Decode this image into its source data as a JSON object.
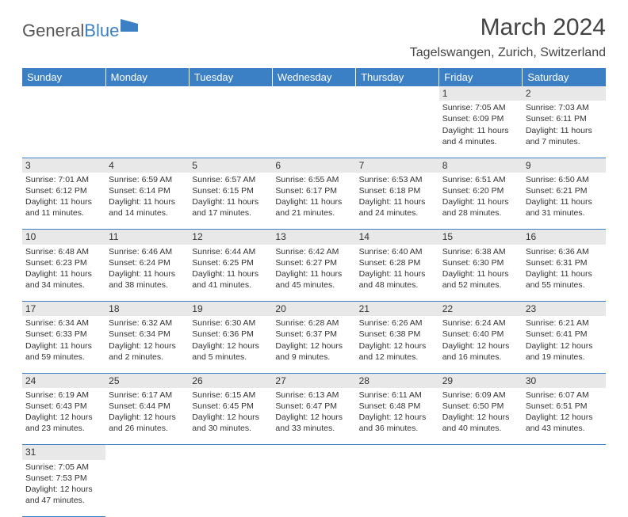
{
  "logo": {
    "text1": "General",
    "text2": "Blue"
  },
  "title": "March 2024",
  "location": "Tagelswangen, Zurich, Switzerland",
  "colors": {
    "header_bg": "#3b7fc4",
    "header_text": "#ffffff",
    "daynum_bg": "#e8e8e8",
    "border": "#3b7fc4",
    "logo_gray": "#555555",
    "logo_blue": "#3b7fc4"
  },
  "days_header": [
    "Sunday",
    "Monday",
    "Tuesday",
    "Wednesday",
    "Thursday",
    "Friday",
    "Saturday"
  ],
  "weeks": [
    {
      "nums": [
        "",
        "",
        "",
        "",
        "",
        "1",
        "2"
      ],
      "cells": [
        null,
        null,
        null,
        null,
        null,
        {
          "sunrise": "Sunrise: 7:05 AM",
          "sunset": "Sunset: 6:09 PM",
          "daylight": "Daylight: 11 hours and 4 minutes."
        },
        {
          "sunrise": "Sunrise: 7:03 AM",
          "sunset": "Sunset: 6:11 PM",
          "daylight": "Daylight: 11 hours and 7 minutes."
        }
      ]
    },
    {
      "nums": [
        "3",
        "4",
        "5",
        "6",
        "7",
        "8",
        "9"
      ],
      "cells": [
        {
          "sunrise": "Sunrise: 7:01 AM",
          "sunset": "Sunset: 6:12 PM",
          "daylight": "Daylight: 11 hours and 11 minutes."
        },
        {
          "sunrise": "Sunrise: 6:59 AM",
          "sunset": "Sunset: 6:14 PM",
          "daylight": "Daylight: 11 hours and 14 minutes."
        },
        {
          "sunrise": "Sunrise: 6:57 AM",
          "sunset": "Sunset: 6:15 PM",
          "daylight": "Daylight: 11 hours and 17 minutes."
        },
        {
          "sunrise": "Sunrise: 6:55 AM",
          "sunset": "Sunset: 6:17 PM",
          "daylight": "Daylight: 11 hours and 21 minutes."
        },
        {
          "sunrise": "Sunrise: 6:53 AM",
          "sunset": "Sunset: 6:18 PM",
          "daylight": "Daylight: 11 hours and 24 minutes."
        },
        {
          "sunrise": "Sunrise: 6:51 AM",
          "sunset": "Sunset: 6:20 PM",
          "daylight": "Daylight: 11 hours and 28 minutes."
        },
        {
          "sunrise": "Sunrise: 6:50 AM",
          "sunset": "Sunset: 6:21 PM",
          "daylight": "Daylight: 11 hours and 31 minutes."
        }
      ]
    },
    {
      "nums": [
        "10",
        "11",
        "12",
        "13",
        "14",
        "15",
        "16"
      ],
      "cells": [
        {
          "sunrise": "Sunrise: 6:48 AM",
          "sunset": "Sunset: 6:23 PM",
          "daylight": "Daylight: 11 hours and 34 minutes."
        },
        {
          "sunrise": "Sunrise: 6:46 AM",
          "sunset": "Sunset: 6:24 PM",
          "daylight": "Daylight: 11 hours and 38 minutes."
        },
        {
          "sunrise": "Sunrise: 6:44 AM",
          "sunset": "Sunset: 6:25 PM",
          "daylight": "Daylight: 11 hours and 41 minutes."
        },
        {
          "sunrise": "Sunrise: 6:42 AM",
          "sunset": "Sunset: 6:27 PM",
          "daylight": "Daylight: 11 hours and 45 minutes."
        },
        {
          "sunrise": "Sunrise: 6:40 AM",
          "sunset": "Sunset: 6:28 PM",
          "daylight": "Daylight: 11 hours and 48 minutes."
        },
        {
          "sunrise": "Sunrise: 6:38 AM",
          "sunset": "Sunset: 6:30 PM",
          "daylight": "Daylight: 11 hours and 52 minutes."
        },
        {
          "sunrise": "Sunrise: 6:36 AM",
          "sunset": "Sunset: 6:31 PM",
          "daylight": "Daylight: 11 hours and 55 minutes."
        }
      ]
    },
    {
      "nums": [
        "17",
        "18",
        "19",
        "20",
        "21",
        "22",
        "23"
      ],
      "cells": [
        {
          "sunrise": "Sunrise: 6:34 AM",
          "sunset": "Sunset: 6:33 PM",
          "daylight": "Daylight: 11 hours and 59 minutes."
        },
        {
          "sunrise": "Sunrise: 6:32 AM",
          "sunset": "Sunset: 6:34 PM",
          "daylight": "Daylight: 12 hours and 2 minutes."
        },
        {
          "sunrise": "Sunrise: 6:30 AM",
          "sunset": "Sunset: 6:36 PM",
          "daylight": "Daylight: 12 hours and 5 minutes."
        },
        {
          "sunrise": "Sunrise: 6:28 AM",
          "sunset": "Sunset: 6:37 PM",
          "daylight": "Daylight: 12 hours and 9 minutes."
        },
        {
          "sunrise": "Sunrise: 6:26 AM",
          "sunset": "Sunset: 6:38 PM",
          "daylight": "Daylight: 12 hours and 12 minutes."
        },
        {
          "sunrise": "Sunrise: 6:24 AM",
          "sunset": "Sunset: 6:40 PM",
          "daylight": "Daylight: 12 hours and 16 minutes."
        },
        {
          "sunrise": "Sunrise: 6:21 AM",
          "sunset": "Sunset: 6:41 PM",
          "daylight": "Daylight: 12 hours and 19 minutes."
        }
      ]
    },
    {
      "nums": [
        "24",
        "25",
        "26",
        "27",
        "28",
        "29",
        "30"
      ],
      "cells": [
        {
          "sunrise": "Sunrise: 6:19 AM",
          "sunset": "Sunset: 6:43 PM",
          "daylight": "Daylight: 12 hours and 23 minutes."
        },
        {
          "sunrise": "Sunrise: 6:17 AM",
          "sunset": "Sunset: 6:44 PM",
          "daylight": "Daylight: 12 hours and 26 minutes."
        },
        {
          "sunrise": "Sunrise: 6:15 AM",
          "sunset": "Sunset: 6:45 PM",
          "daylight": "Daylight: 12 hours and 30 minutes."
        },
        {
          "sunrise": "Sunrise: 6:13 AM",
          "sunset": "Sunset: 6:47 PM",
          "daylight": "Daylight: 12 hours and 33 minutes."
        },
        {
          "sunrise": "Sunrise: 6:11 AM",
          "sunset": "Sunset: 6:48 PM",
          "daylight": "Daylight: 12 hours and 36 minutes."
        },
        {
          "sunrise": "Sunrise: 6:09 AM",
          "sunset": "Sunset: 6:50 PM",
          "daylight": "Daylight: 12 hours and 40 minutes."
        },
        {
          "sunrise": "Sunrise: 6:07 AM",
          "sunset": "Sunset: 6:51 PM",
          "daylight": "Daylight: 12 hours and 43 minutes."
        }
      ]
    },
    {
      "nums": [
        "31",
        "",
        "",
        "",
        "",
        "",
        ""
      ],
      "cells": [
        {
          "sunrise": "Sunrise: 7:05 AM",
          "sunset": "Sunset: 7:53 PM",
          "daylight": "Daylight: 12 hours and 47 minutes."
        },
        null,
        null,
        null,
        null,
        null,
        null
      ]
    }
  ]
}
